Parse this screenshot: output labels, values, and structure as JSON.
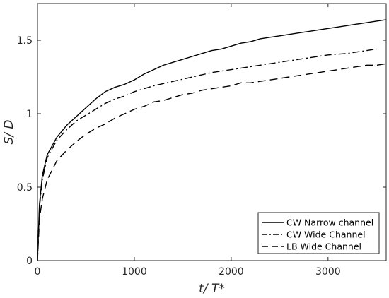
{
  "chart_data": {
    "type": "line",
    "title": "",
    "xlabel": "t/ T*",
    "ylabel": "S/ D",
    "xlim": [
      0,
      3600
    ],
    "ylim": [
      0,
      1.75
    ],
    "xticks": [
      0,
      1000,
      2000,
      3000
    ],
    "xtick_labels": [
      "0",
      "1000",
      "2000",
      "3000"
    ],
    "yticks": [
      0,
      0.5,
      1,
      1.5
    ],
    "ytick_labels": [
      "0",
      "0.5",
      "1",
      "1.5"
    ],
    "grid": false,
    "legend_position": "bottom-right",
    "series": [
      {
        "name": "CW Narrow channel",
        "line_style": "solid",
        "color": "#000000",
        "x": [
          0,
          20,
          50,
          100,
          200,
          300,
          400,
          500,
          600,
          700,
          800,
          900,
          1000,
          1100,
          1200,
          1300,
          1400,
          1500,
          1600,
          1700,
          1800,
          1900,
          2000,
          2100,
          2200,
          2300,
          2400,
          2500,
          2600,
          2700,
          2800,
          2900,
          3000,
          3100,
          3200,
          3300,
          3400,
          3500,
          3600
        ],
        "y": [
          0,
          0.38,
          0.58,
          0.72,
          0.84,
          0.92,
          0.98,
          1.04,
          1.1,
          1.15,
          1.18,
          1.2,
          1.23,
          1.27,
          1.3,
          1.33,
          1.35,
          1.37,
          1.39,
          1.41,
          1.43,
          1.44,
          1.46,
          1.48,
          1.49,
          1.51,
          1.52,
          1.53,
          1.54,
          1.55,
          1.56,
          1.57,
          1.58,
          1.59,
          1.6,
          1.61,
          1.62,
          1.63,
          1.64
        ]
      },
      {
        "name": "CW Wide Channel",
        "line_style": "dash-dot",
        "color": "#000000",
        "x": [
          0,
          20,
          50,
          100,
          200,
          300,
          400,
          500,
          600,
          700,
          800,
          900,
          1000,
          1200,
          1400,
          1600,
          1800,
          2000,
          2200,
          2400,
          2600,
          2800,
          3000,
          3200,
          3400,
          3500
        ],
        "y": [
          0,
          0.36,
          0.55,
          0.7,
          0.82,
          0.89,
          0.95,
          0.99,
          1.03,
          1.07,
          1.1,
          1.12,
          1.15,
          1.19,
          1.22,
          1.25,
          1.28,
          1.3,
          1.32,
          1.34,
          1.36,
          1.38,
          1.4,
          1.41,
          1.43,
          1.44
        ]
      },
      {
        "name": "LB Wide Channel",
        "line_style": "dashed",
        "color": "#000000",
        "x": [
          0,
          20,
          50,
          100,
          200,
          300,
          400,
          500,
          600,
          700,
          800,
          900,
          1000,
          1100,
          1200,
          1300,
          1400,
          1500,
          1600,
          1700,
          1800,
          1900,
          2000,
          2100,
          2200,
          2300,
          2400,
          2500,
          2600,
          2700,
          2800,
          2900,
          3000,
          3100,
          3200,
          3300,
          3400,
          3500,
          3600
        ],
        "y": [
          0,
          0.28,
          0.42,
          0.55,
          0.68,
          0.75,
          0.81,
          0.86,
          0.9,
          0.93,
          0.97,
          1.0,
          1.03,
          1.05,
          1.08,
          1.09,
          1.11,
          1.13,
          1.14,
          1.16,
          1.17,
          1.18,
          1.19,
          1.21,
          1.21,
          1.22,
          1.23,
          1.24,
          1.25,
          1.26,
          1.27,
          1.28,
          1.29,
          1.3,
          1.31,
          1.32,
          1.33,
          1.33,
          1.34
        ]
      }
    ]
  }
}
